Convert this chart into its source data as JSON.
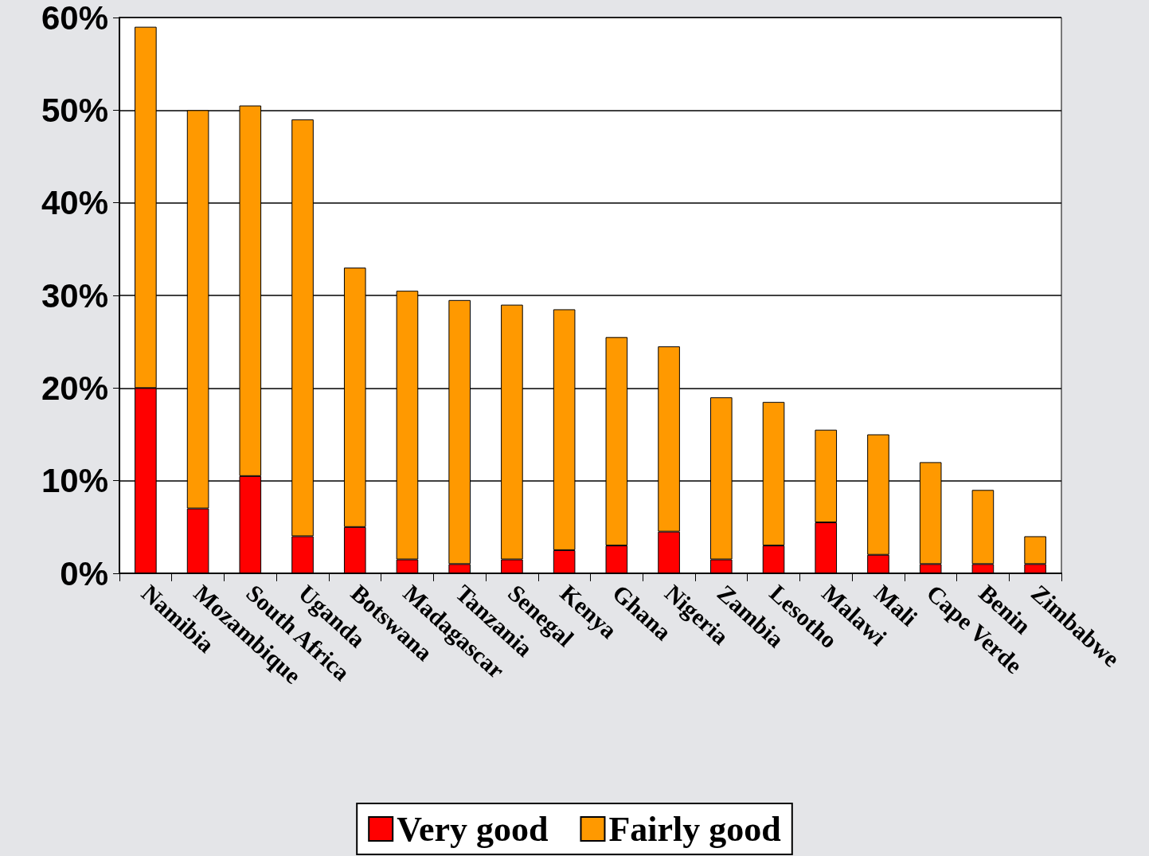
{
  "chart_data": {
    "type": "bar",
    "stacked": true,
    "categories": [
      "Namibia",
      "Mozambique",
      "South Africa",
      "Uganda",
      "Botswana",
      "Madagascar",
      "Tanzania",
      "Senegal",
      "Kenya",
      "Ghana",
      "Nigeria",
      "Zambia",
      "Lesotho",
      "Malawi",
      "Mali",
      "Cape Verde",
      "Benin",
      "Zimbabwe"
    ],
    "series": [
      {
        "name": "Very good",
        "color": "#ff0000",
        "values": [
          20,
          7,
          10.5,
          4,
          5,
          1.5,
          1,
          1.5,
          2.5,
          3,
          4.5,
          1.5,
          3,
          5.5,
          2,
          1,
          1,
          1
        ]
      },
      {
        "name": "Fairly good",
        "color": "#ff9900",
        "values": [
          39,
          43,
          40,
          45,
          28,
          29,
          28.5,
          27.5,
          26,
          22.5,
          20,
          17.5,
          15.5,
          10,
          13,
          11,
          8,
          3
        ]
      }
    ],
    "ylim": [
      0,
      60
    ],
    "yticks": [
      {
        "value": 0,
        "label": "0%"
      },
      {
        "value": 10,
        "label": "10%"
      },
      {
        "value": 20,
        "label": "20%"
      },
      {
        "value": 30,
        "label": "30%"
      },
      {
        "value": 40,
        "label": "40%"
      },
      {
        "value": 50,
        "label": "50%"
      },
      {
        "value": 60,
        "label": "60%"
      }
    ],
    "grid": "y",
    "legend": "bottom"
  }
}
